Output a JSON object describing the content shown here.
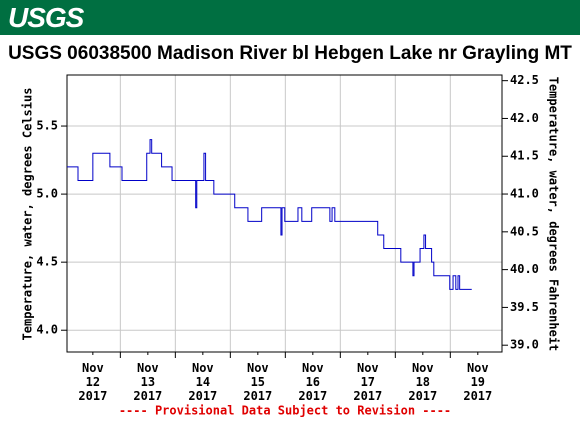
{
  "header": {
    "logo": "USGS"
  },
  "chart_data": {
    "type": "line",
    "step": true,
    "title": "USGS 06038500 Madison River bl Hebgen Lake nr Grayling MT",
    "ylabel": "Temperature, water, degrees Celsius",
    "y2label": "Temperature, water, degrees Fahrenheit",
    "footer": "---- Provisional Data Subject to Revision ----",
    "xlim": [
      12.03,
      19.94
    ],
    "xticks": [
      {
        "value": 12.5,
        "label": "Nov\n12\n2017"
      },
      {
        "value": 13.5,
        "label": "Nov\n13\n2017"
      },
      {
        "value": 14.5,
        "label": "Nov\n14\n2017"
      },
      {
        "value": 15.5,
        "label": "Nov\n15\n2017"
      },
      {
        "value": 16.5,
        "label": "Nov\n16\n2017"
      },
      {
        "value": 17.5,
        "label": "Nov\n17\n2017"
      },
      {
        "value": 18.5,
        "label": "Nov\n18\n2017"
      },
      {
        "value": 19.5,
        "label": "Nov\n19\n2017"
      }
    ],
    "xgrid": [
      13,
      14,
      15,
      16,
      17,
      18,
      19
    ],
    "ylim": [
      3.84,
      5.875
    ],
    "yticks": [
      {
        "value": 4,
        "label": "4.0"
      },
      4.5,
      {
        "value": 5,
        "label": "5.0"
      },
      5.5
    ],
    "y2lim": [
      38.91,
      42.575
    ],
    "y2ticks": [
      {
        "value": 39,
        "label": "39.0"
      },
      39.5,
      {
        "value": 40,
        "label": "40.0"
      },
      40.5,
      {
        "value": 41,
        "label": "41.0"
      },
      41.5,
      {
        "value": 42,
        "label": "42.0"
      },
      42.5
    ],
    "grid": true,
    "series": [
      {
        "name": "Temperature",
        "color": "#0000c8",
        "x": [
          12.03,
          12.23,
          12.5,
          12.81,
          13.03,
          13.48,
          13.54,
          13.57,
          13.65,
          13.75,
          13.94,
          14.37,
          14.39,
          14.52,
          14.55,
          14.63,
          14.7,
          15.01,
          15.08,
          15.32,
          15.57,
          15.92,
          15.94,
          15.95,
          15.99,
          16.23,
          16.3,
          16.48,
          16.81,
          16.85,
          16.9,
          17.68,
          17.79,
          18.1,
          18.32,
          18.34,
          18.45,
          18.52,
          18.55,
          18.66,
          18.7,
          18.74,
          18.99,
          19.05,
          19.1,
          19.14,
          19.17,
          19.39
        ],
        "values": [
          5.2,
          5.1,
          5.3,
          5.2,
          5.1,
          5.3,
          5.4,
          5.3,
          5.3,
          5.2,
          5.1,
          4.9,
          5.1,
          5.3,
          5.1,
          5.1,
          5.0,
          5.0,
          4.9,
          4.8,
          4.9,
          4.7,
          4.9,
          4.9,
          4.8,
          4.9,
          4.8,
          4.9,
          4.8,
          4.9,
          4.8,
          4.7,
          4.6,
          4.5,
          4.4,
          4.5,
          4.6,
          4.7,
          4.6,
          4.5,
          4.4,
          4.4,
          4.3,
          4.4,
          4.3,
          4.4,
          4.3,
          4.3
        ]
      }
    ]
  }
}
